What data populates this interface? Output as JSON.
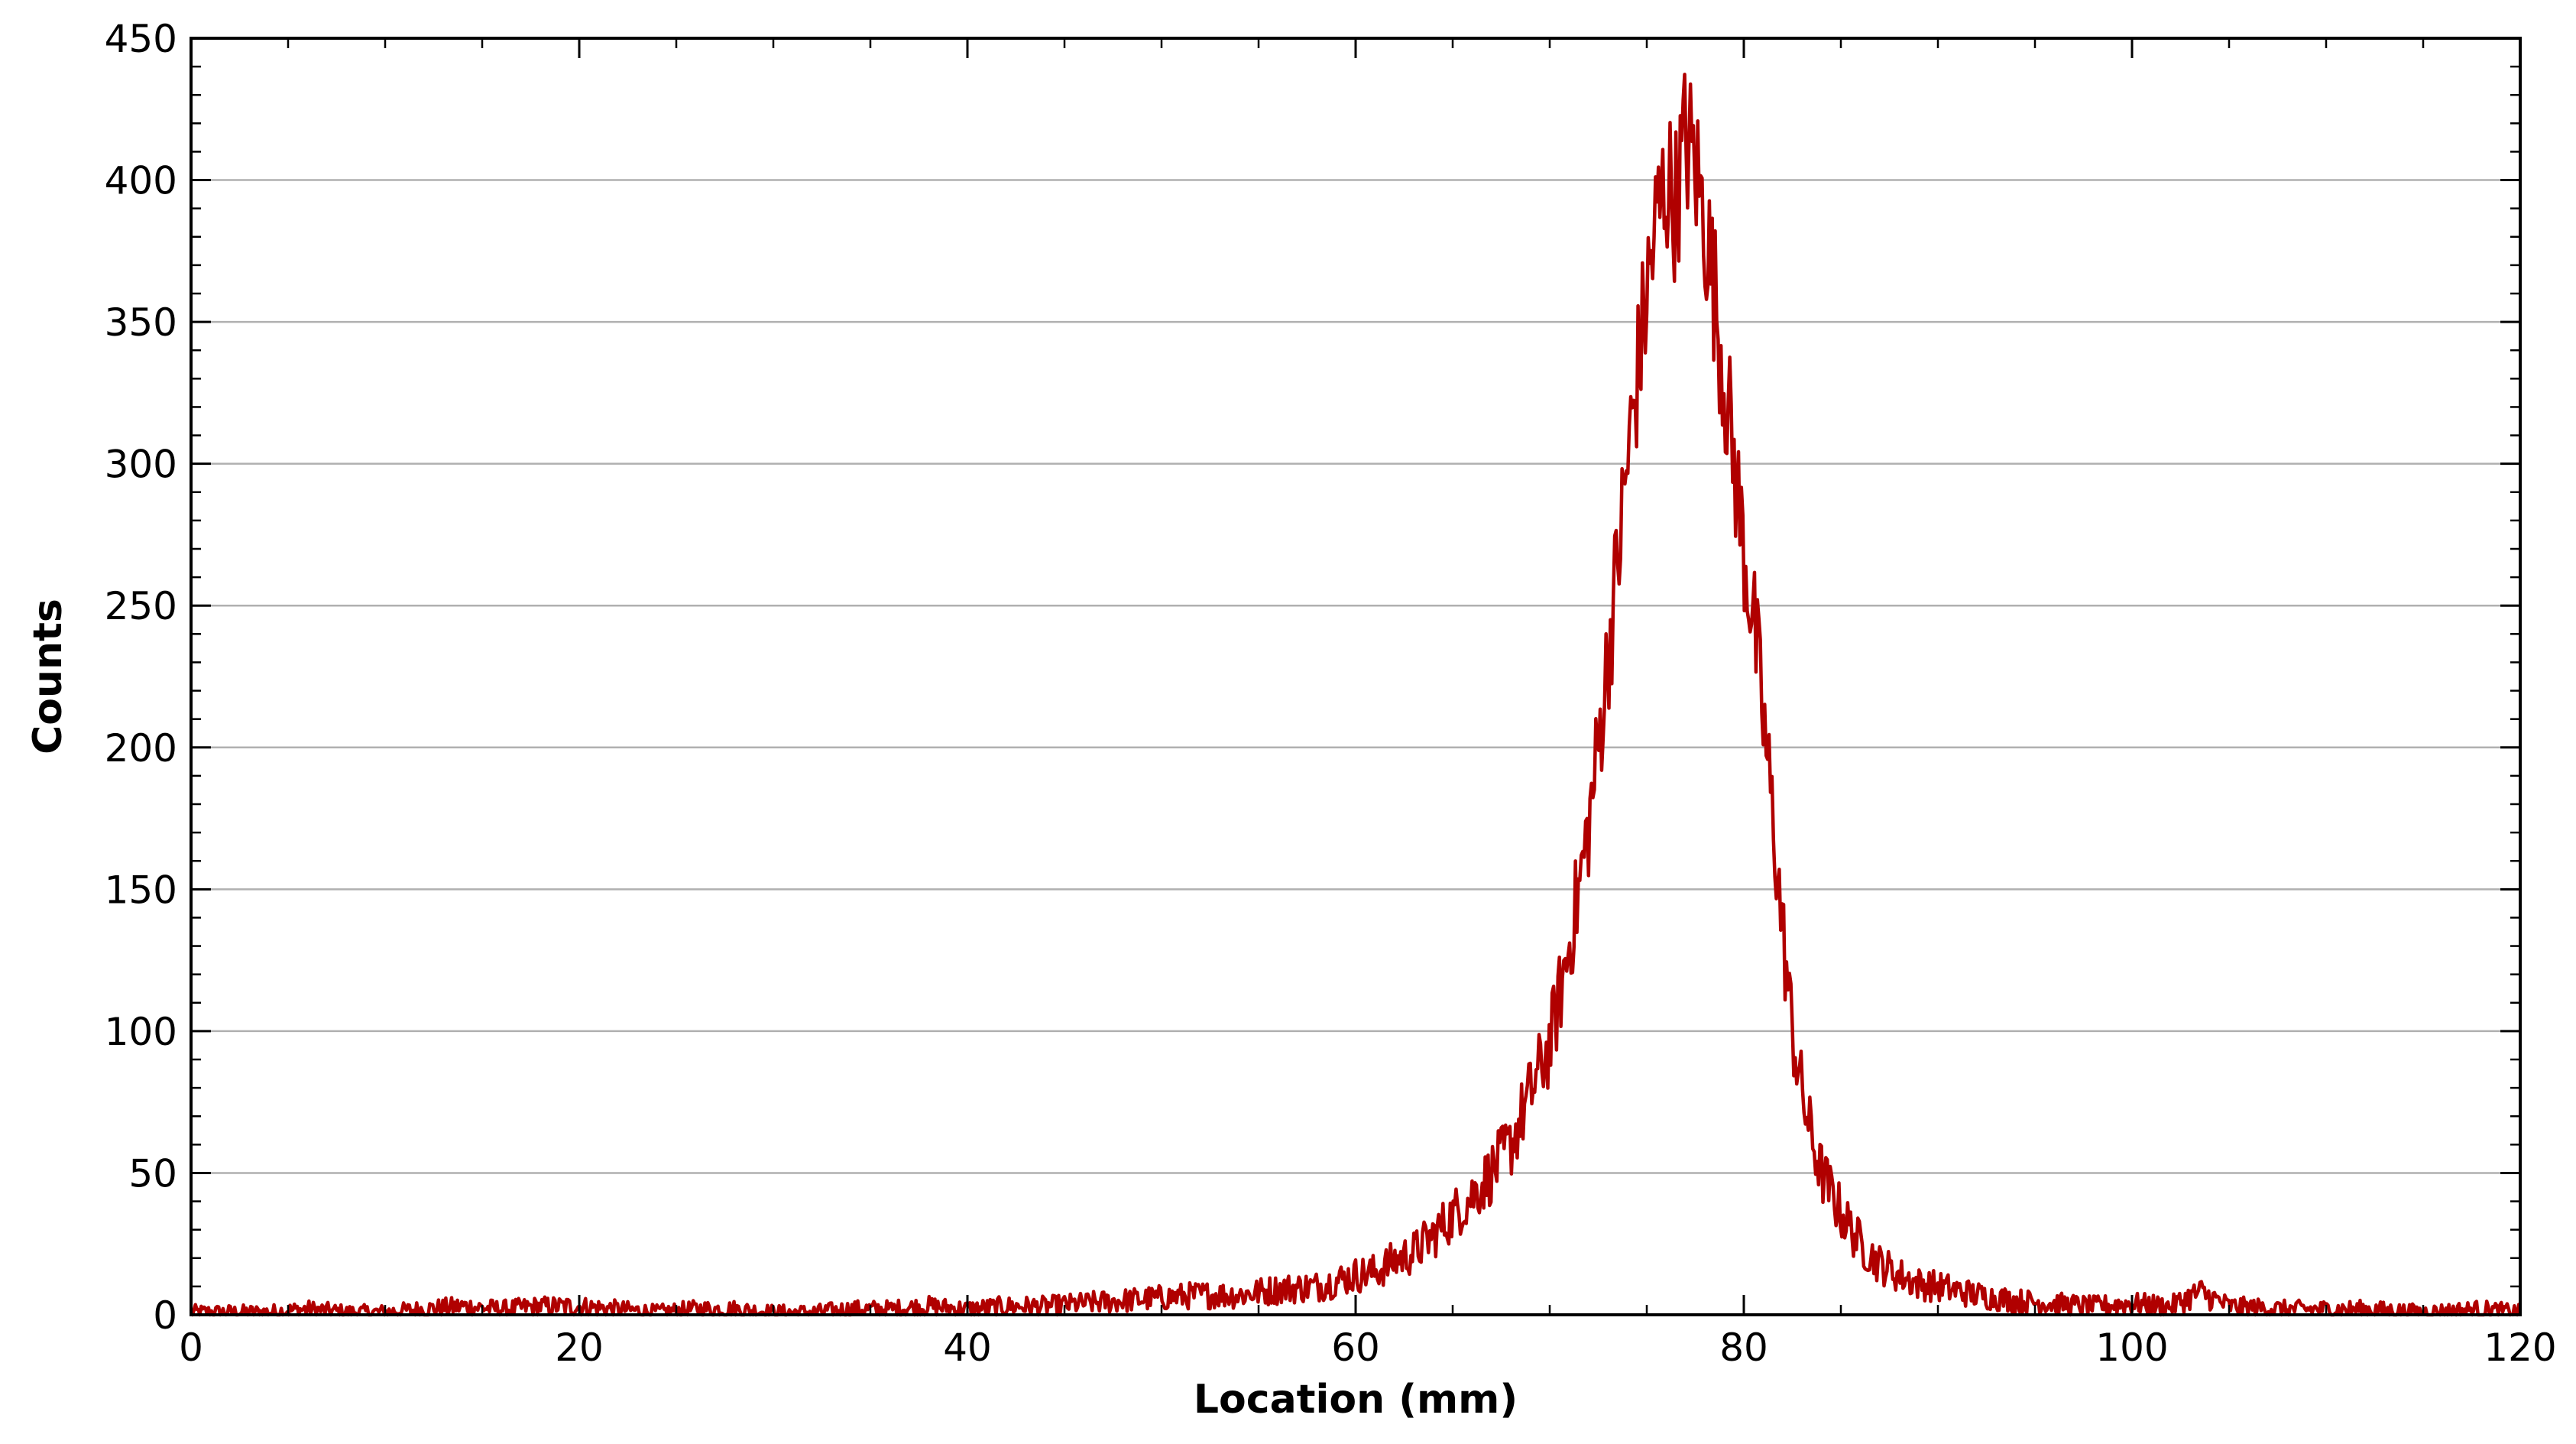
{
  "chart_data": {
    "type": "line",
    "title": "",
    "xlabel": "Location (mm)",
    "ylabel": "Counts",
    "xlim": [
      0,
      120
    ],
    "ylim": [
      0,
      450
    ],
    "x_ticks": [
      0,
      20,
      40,
      60,
      80,
      100,
      120
    ],
    "y_ticks": [
      0,
      50,
      100,
      150,
      200,
      250,
      300,
      350,
      400,
      450
    ],
    "x_tick_labels": [
      "0",
      "20",
      "40",
      "60",
      "80",
      "100",
      "120"
    ],
    "y_tick_labels": [
      "0",
      "50",
      "100",
      "150",
      "200",
      "250",
      "300",
      "350",
      "400",
      "450"
    ],
    "grid": "horizontal",
    "line_color": "#b00000",
    "series": [
      {
        "x": [
          0,
          2,
          4,
          6,
          8,
          10,
          12,
          14,
          16,
          18,
          20,
          22,
          24,
          26,
          28,
          30,
          32,
          34,
          36,
          38,
          40,
          42,
          44,
          46,
          48,
          50,
          52,
          54,
          56,
          58,
          60,
          61,
          62,
          63,
          64,
          65,
          66,
          67,
          68,
          69,
          70,
          70.5,
          71,
          71.5,
          72,
          72.5,
          73,
          73.5,
          74,
          74.5,
          75,
          75.5,
          76,
          76.5,
          77,
          77.5,
          78,
          78.5,
          79,
          79.5,
          80,
          80.5,
          81,
          81.5,
          82,
          82.5,
          83,
          83.5,
          84,
          85,
          86,
          87,
          88,
          89,
          90,
          92,
          94,
          96,
          98,
          100,
          102,
          103.5,
          105,
          108,
          110,
          112,
          115,
          118,
          120
        ],
        "y": [
          1,
          1,
          1,
          2,
          1,
          1,
          2,
          3,
          2,
          3,
          3,
          2,
          1,
          2,
          2,
          1,
          1,
          2,
          2,
          3,
          2,
          3,
          3,
          4,
          5,
          6,
          7,
          7,
          9,
          10,
          14,
          15,
          19,
          22,
          28,
          35,
          42,
          50,
          60,
          78,
          95,
          112,
          130,
          150,
          172,
          200,
          232,
          265,
          300,
          330,
          360,
          385,
          400,
          392,
          415,
          405,
          385,
          360,
          330,
          300,
          270,
          245,
          210,
          175,
          135,
          100,
          78,
          62,
          50,
          36,
          25,
          18,
          14,
          11,
          10,
          7,
          5,
          4,
          3,
          4,
          3,
          8,
          3,
          2,
          2,
          2,
          1,
          2,
          1
        ]
      }
    ]
  }
}
